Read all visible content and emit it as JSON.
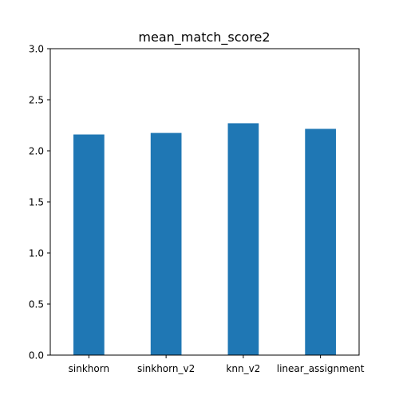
{
  "chart_data": {
    "type": "bar",
    "title": "mean_match_score2",
    "xlabel": "",
    "ylabel": "",
    "categories": [
      "sinkhorn",
      "sinkhorn_v2",
      "knn_v2",
      "linear_assignment"
    ],
    "values": [
      2.16,
      2.175,
      2.27,
      2.215
    ],
    "ylim": [
      0,
      3.0
    ],
    "yticks": [
      "0.0",
      "0.5",
      "1.0",
      "1.5",
      "2.0",
      "2.5",
      "3.0"
    ],
    "grid": false,
    "legend": "none",
    "bar_color": "#1f77b4"
  }
}
